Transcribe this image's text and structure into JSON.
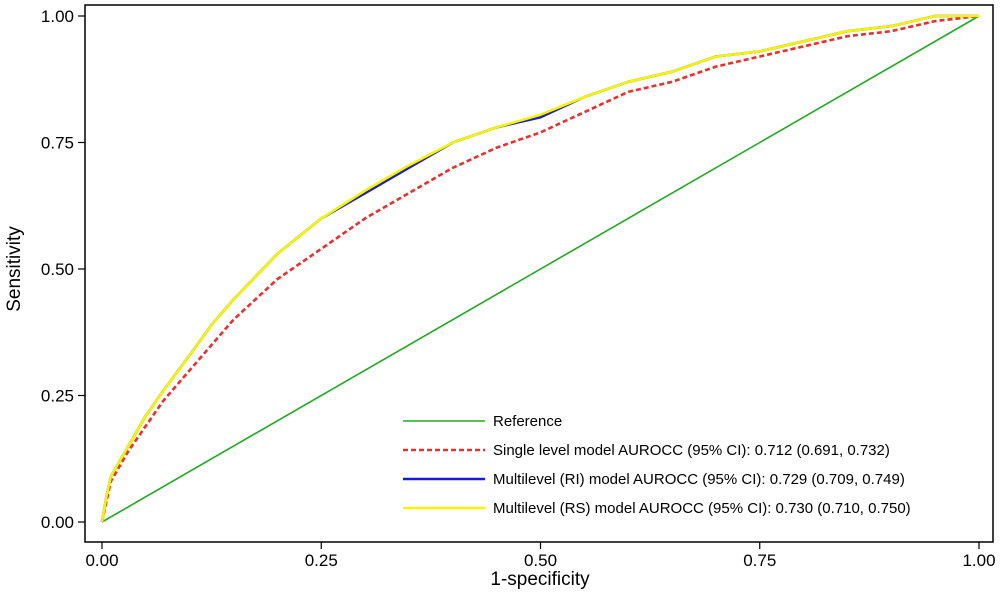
{
  "chart_data": {
    "type": "line",
    "title": "",
    "xlabel": "1-specificity",
    "ylabel": "Sensitivity",
    "xlim": [
      0,
      1
    ],
    "ylim": [
      0,
      1
    ],
    "x_ticks": [
      "0.00",
      "0.25",
      "0.50",
      "0.75",
      "1.00"
    ],
    "y_ticks": [
      "0.00",
      "0.25",
      "0.50",
      "0.75",
      "1.00"
    ],
    "grid": false,
    "legend_position": "bottom-right",
    "series": [
      {
        "name": "Reference",
        "color": "#22aa22",
        "style": "solid",
        "x": [
          0,
          1
        ],
        "y": [
          0,
          1
        ]
      },
      {
        "name": "Single level model AUROCC (95% CI): 0.712 (0.691, 0.732)",
        "color": "#e8312f",
        "style": "dashed",
        "x": [
          0,
          0.005,
          0.01,
          0.02,
          0.03,
          0.05,
          0.07,
          0.1,
          0.125,
          0.15,
          0.2,
          0.25,
          0.3,
          0.35,
          0.4,
          0.45,
          0.5,
          0.55,
          0.6,
          0.65,
          0.7,
          0.75,
          0.8,
          0.85,
          0.9,
          0.95,
          1
        ],
        "y": [
          0,
          0.04,
          0.08,
          0.11,
          0.14,
          0.19,
          0.24,
          0.3,
          0.35,
          0.4,
          0.48,
          0.54,
          0.6,
          0.65,
          0.7,
          0.74,
          0.77,
          0.81,
          0.85,
          0.87,
          0.9,
          0.92,
          0.94,
          0.96,
          0.97,
          0.99,
          1
        ]
      },
      {
        "name": "Multilevel (RI) model AUROCC (95% CI): 0.729 (0.709, 0.749)",
        "color": "#1a1ad6",
        "style": "solid",
        "x": [
          0,
          0.005,
          0.01,
          0.02,
          0.03,
          0.05,
          0.07,
          0.1,
          0.125,
          0.15,
          0.2,
          0.25,
          0.3,
          0.35,
          0.4,
          0.45,
          0.5,
          0.55,
          0.6,
          0.65,
          0.7,
          0.75,
          0.8,
          0.85,
          0.9,
          0.95,
          1
        ],
        "y": [
          0,
          0.05,
          0.09,
          0.12,
          0.15,
          0.21,
          0.26,
          0.33,
          0.39,
          0.44,
          0.53,
          0.6,
          0.65,
          0.7,
          0.75,
          0.78,
          0.8,
          0.84,
          0.87,
          0.89,
          0.92,
          0.93,
          0.95,
          0.97,
          0.98,
          1.0,
          1
        ]
      },
      {
        "name": "Multilevel (RS) model AUROCC (95% CI): 0.730 (0.710, 0.750)",
        "color": "#f5f500",
        "style": "solid",
        "x": [
          0,
          0.005,
          0.01,
          0.02,
          0.03,
          0.05,
          0.07,
          0.1,
          0.125,
          0.15,
          0.2,
          0.25,
          0.3,
          0.35,
          0.4,
          0.45,
          0.5,
          0.55,
          0.6,
          0.65,
          0.7,
          0.75,
          0.8,
          0.85,
          0.9,
          0.95,
          1
        ],
        "y": [
          0,
          0.05,
          0.09,
          0.12,
          0.15,
          0.21,
          0.26,
          0.33,
          0.39,
          0.44,
          0.53,
          0.6,
          0.655,
          0.705,
          0.75,
          0.78,
          0.805,
          0.84,
          0.87,
          0.89,
          0.92,
          0.93,
          0.95,
          0.97,
          0.98,
          1.0,
          1
        ]
      }
    ]
  }
}
